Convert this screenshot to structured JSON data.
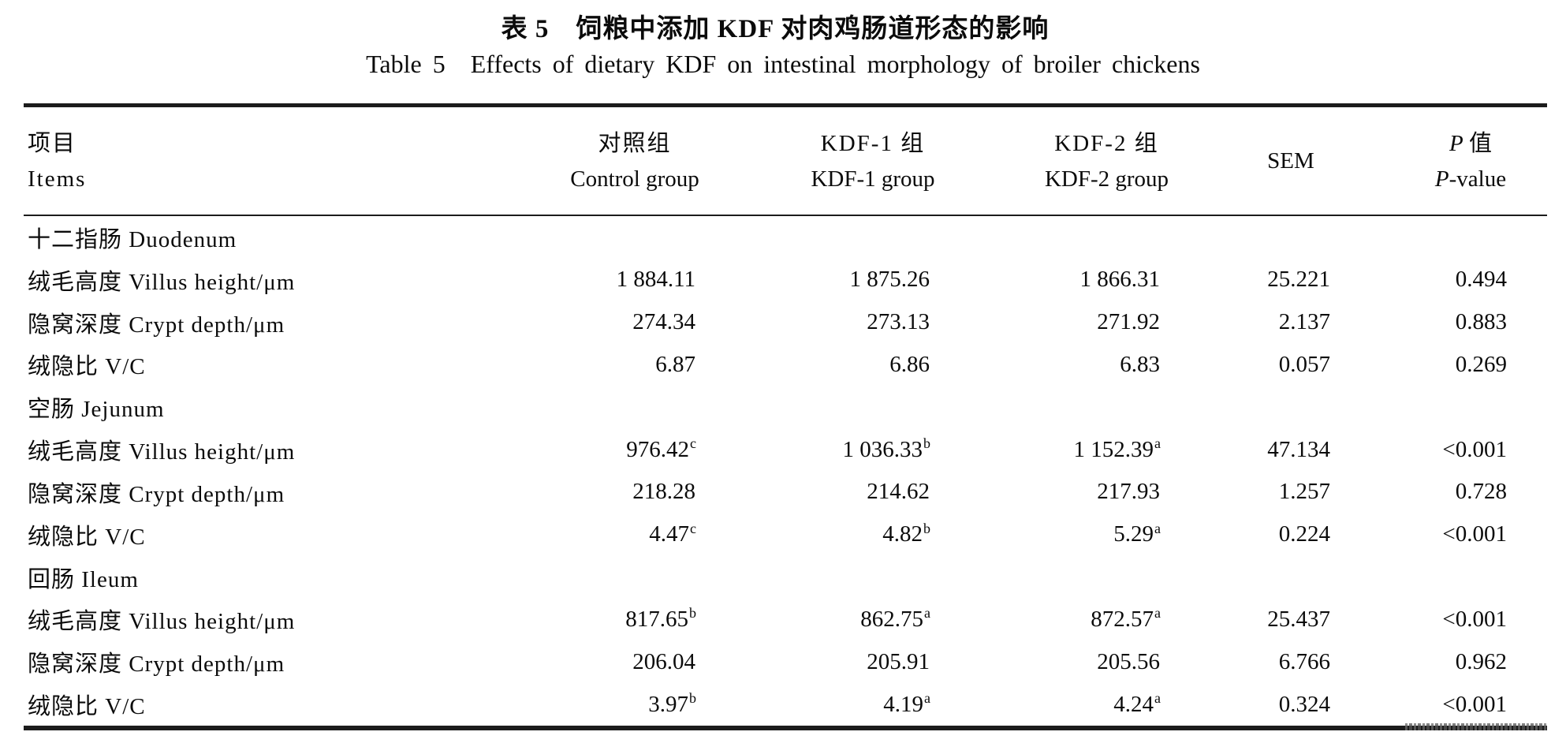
{
  "title": {
    "zh": "表 5　饲粮中添加 KDF 对肉鸡肠道形态的影响",
    "en": "Table 5　Effects of dietary KDF on intestinal morphology of broiler chickens"
  },
  "table": {
    "header": {
      "items_zh": "项目",
      "items_en": "Items",
      "control_zh": "对照组",
      "control_en": "Control group",
      "kdf1_zh": "KDF-1 组",
      "kdf1_en": "KDF-1 group",
      "kdf2_zh": "KDF-2 组",
      "kdf2_en": "KDF-2 group",
      "sem": "SEM",
      "p_sym": "P",
      "p_zh": " 值",
      "p_en_sym": "P",
      "p_en": "-value"
    },
    "rows": [
      {
        "type": "section",
        "label": "十二指肠 Duodenum",
        "cells": [
          {
            "v": "",
            "s": ""
          },
          {
            "v": "",
            "s": ""
          },
          {
            "v": "",
            "s": ""
          },
          {
            "v": "",
            "s": ""
          },
          {
            "v": "",
            "s": ""
          }
        ]
      },
      {
        "type": "data",
        "label": "绒毛高度 Villus height/μm",
        "cells": [
          {
            "v": "1 884.11",
            "s": ""
          },
          {
            "v": "1 875.26",
            "s": ""
          },
          {
            "v": "1 866.31",
            "s": ""
          },
          {
            "v": "25.221",
            "s": ""
          },
          {
            "v": "0.494",
            "s": ""
          }
        ]
      },
      {
        "type": "data",
        "label": "隐窝深度 Crypt depth/μm",
        "cells": [
          {
            "v": "274.34",
            "s": ""
          },
          {
            "v": "273.13",
            "s": ""
          },
          {
            "v": "271.92",
            "s": ""
          },
          {
            "v": "2.137",
            "s": ""
          },
          {
            "v": "0.883",
            "s": ""
          }
        ]
      },
      {
        "type": "data",
        "label": "绒隐比 V/C",
        "cells": [
          {
            "v": "6.87",
            "s": ""
          },
          {
            "v": "6.86",
            "s": ""
          },
          {
            "v": "6.83",
            "s": ""
          },
          {
            "v": "0.057",
            "s": ""
          },
          {
            "v": "0.269",
            "s": ""
          }
        ]
      },
      {
        "type": "section",
        "label": "空肠 Jejunum",
        "cells": [
          {
            "v": "",
            "s": ""
          },
          {
            "v": "",
            "s": ""
          },
          {
            "v": "",
            "s": ""
          },
          {
            "v": "",
            "s": ""
          },
          {
            "v": "",
            "s": ""
          }
        ]
      },
      {
        "type": "data",
        "label": "绒毛高度 Villus height/μm",
        "cells": [
          {
            "v": "976.42",
            "s": "c"
          },
          {
            "v": "1 036.33",
            "s": "b"
          },
          {
            "v": "1 152.39",
            "s": "a"
          },
          {
            "v": "47.134",
            "s": ""
          },
          {
            "v": "<0.001",
            "s": ""
          }
        ]
      },
      {
        "type": "data",
        "label": "隐窝深度 Crypt depth/μm",
        "cells": [
          {
            "v": "218.28",
            "s": ""
          },
          {
            "v": "214.62",
            "s": ""
          },
          {
            "v": "217.93",
            "s": ""
          },
          {
            "v": "1.257",
            "s": ""
          },
          {
            "v": "0.728",
            "s": ""
          }
        ]
      },
      {
        "type": "data",
        "label": "绒隐比 V/C",
        "cells": [
          {
            "v": "4.47",
            "s": "c"
          },
          {
            "v": "4.82",
            "s": "b"
          },
          {
            "v": "5.29",
            "s": "a"
          },
          {
            "v": "0.224",
            "s": ""
          },
          {
            "v": "<0.001",
            "s": ""
          }
        ]
      },
      {
        "type": "section",
        "label": "回肠 Ileum",
        "cells": [
          {
            "v": "",
            "s": ""
          },
          {
            "v": "",
            "s": ""
          },
          {
            "v": "",
            "s": ""
          },
          {
            "v": "",
            "s": ""
          },
          {
            "v": "",
            "s": ""
          }
        ]
      },
      {
        "type": "data",
        "label": "绒毛高度 Villus height/μm",
        "cells": [
          {
            "v": "817.65",
            "s": "b"
          },
          {
            "v": "862.75",
            "s": "a"
          },
          {
            "v": "872.57",
            "s": "a"
          },
          {
            "v": "25.437",
            "s": ""
          },
          {
            "v": "<0.001",
            "s": ""
          }
        ]
      },
      {
        "type": "data",
        "label": "隐窝深度 Crypt depth/μm",
        "cells": [
          {
            "v": "206.04",
            "s": ""
          },
          {
            "v": "205.91",
            "s": ""
          },
          {
            "v": "205.56",
            "s": ""
          },
          {
            "v": "6.766",
            "s": ""
          },
          {
            "v": "0.962",
            "s": ""
          }
        ]
      },
      {
        "type": "data",
        "label": "绒隐比 V/C",
        "cells": [
          {
            "v": "3.97",
            "s": "b"
          },
          {
            "v": "4.19",
            "s": "a"
          },
          {
            "v": "4.24",
            "s": "a"
          },
          {
            "v": "0.324",
            "s": ""
          },
          {
            "v": "<0.001",
            "s": ""
          }
        ]
      }
    ]
  }
}
